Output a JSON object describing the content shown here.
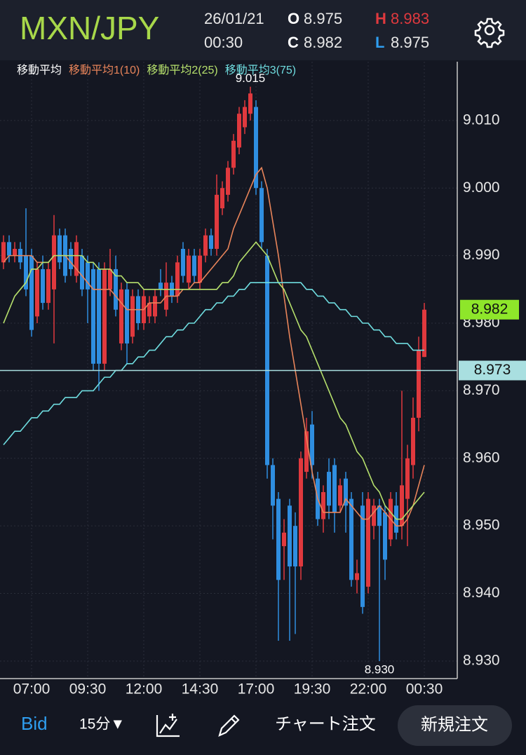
{
  "header": {
    "symbol": "MXN/JPY",
    "date": "26/01/21",
    "time": "00:30",
    "open_label": "O",
    "open": "8.975",
    "close_label": "C",
    "close": "8.982",
    "high_label": "H",
    "high": "8.983",
    "low_label": "L",
    "low": "8.975"
  },
  "chart_data": {
    "type": "candlestick",
    "legend_title": "移動平均",
    "categories": [
      null,
      null,
      null,
      null,
      null,
      "07:00",
      null,
      null,
      null,
      null,
      null,
      null,
      null,
      null,
      null,
      "09:30",
      null,
      null,
      null,
      null,
      null,
      null,
      null,
      null,
      null,
      "12:00",
      null,
      null,
      null,
      null,
      null,
      null,
      null,
      null,
      null,
      "14:30",
      null,
      null,
      null,
      null,
      null,
      null,
      null,
      null,
      null,
      "17:00",
      null,
      null,
      null,
      null,
      null,
      null,
      null,
      null,
      null,
      "19:30",
      null,
      null,
      null,
      null,
      null,
      null,
      null,
      null,
      null,
      "22:00",
      null,
      null,
      null,
      null,
      null,
      null,
      null,
      null,
      null,
      "00:30"
    ],
    "open": [
      8.989,
      8.992,
      8.99,
      8.991,
      8.99,
      8.99,
      8.981,
      8.988,
      8.983,
      8.985,
      8.993,
      8.993,
      8.991,
      8.987,
      8.99,
      8.989,
      8.988,
      8.988,
      8.974,
      8.985,
      8.988,
      8.977,
      8.985,
      8.978,
      8.984,
      8.98,
      8.981,
      8.981,
      8.986,
      8.982,
      8.986,
      8.984,
      8.991,
      8.986,
      8.99,
      8.986,
      8.99,
      8.993,
      8.991,
      8.997,
      8.999,
      9.003,
      9.006,
      9.009,
      9.011,
      9.012,
      9.0,
      8.99,
      8.959,
      8.954,
      8.947,
      8.953,
      8.95,
      8.944,
      8.958,
      8.965,
      8.957,
      8.951,
      8.958,
      8.959,
      8.953,
      8.957,
      8.954,
      8.942,
      8.953,
      8.941,
      8.95,
      8.953,
      8.952,
      8.948,
      8.953,
      8.95,
      8.954,
      8.959,
      8.966,
      8.975
    ],
    "high": [
      8.993,
      8.993,
      8.992,
      8.992,
      8.997,
      8.991,
      8.989,
      8.99,
      8.989,
      8.996,
      8.994,
      8.994,
      8.992,
      8.993,
      8.991,
      8.99,
      8.989,
      8.989,
      8.989,
      8.991,
      8.99,
      8.986,
      8.986,
      8.985,
      8.985,
      8.985,
      8.984,
      8.985,
      8.988,
      8.989,
      8.987,
      8.99,
      8.992,
      8.991,
      8.991,
      8.991,
      8.994,
      8.994,
      9.002,
      9.001,
      9.004,
      9.008,
      9.012,
      9.013,
      9.015,
      9.013,
      9.001,
      8.991,
      8.96,
      8.955,
      8.951,
      8.954,
      8.952,
      8.961,
      8.966,
      8.967,
      8.958,
      8.956,
      8.96,
      8.96,
      8.957,
      8.958,
      8.955,
      8.945,
      8.955,
      8.955,
      8.954,
      8.954,
      8.953,
      8.955,
      8.955,
      8.97,
      8.962,
      8.969,
      8.978,
      8.983
    ],
    "low": [
      8.988,
      8.989,
      8.989,
      8.988,
      8.984,
      8.978,
      8.98,
      8.982,
      8.982,
      8.977,
      8.988,
      8.986,
      8.987,
      8.986,
      8.984,
      8.98,
      8.973,
      8.97,
      8.973,
      8.984,
      8.981,
      8.976,
      8.974,
      8.977,
      8.979,
      8.979,
      8.98,
      8.98,
      8.984,
      8.981,
      8.983,
      8.983,
      8.986,
      8.985,
      8.986,
      8.985,
      8.989,
      8.99,
      8.99,
      8.996,
      8.998,
      9.002,
      9.005,
      9.008,
      9.01,
      8.999,
      8.991,
      8.957,
      8.948,
      8.933,
      8.942,
      8.933,
      8.934,
      8.942,
      8.957,
      8.957,
      8.95,
      8.949,
      8.951,
      8.949,
      8.952,
      8.949,
      8.941,
      8.94,
      8.937,
      8.94,
      8.948,
      8.93,
      8.942,
      8.947,
      8.948,
      8.948,
      8.947,
      8.957,
      8.964,
      8.975
    ],
    "close": [
      8.992,
      8.99,
      8.991,
      8.989,
      8.985,
      8.979,
      8.988,
      8.983,
      8.988,
      8.993,
      8.989,
      8.987,
      8.988,
      8.992,
      8.985,
      8.985,
      8.974,
      8.974,
      8.988,
      8.988,
      8.982,
      8.985,
      8.977,
      8.984,
      8.98,
      8.984,
      8.983,
      8.984,
      8.985,
      8.986,
      8.984,
      8.989,
      8.987,
      8.99,
      8.987,
      8.99,
      8.993,
      8.991,
      8.999,
      9.0,
      9.003,
      9.007,
      9.011,
      9.012,
      9.014,
      9.0,
      8.992,
      8.959,
      8.953,
      8.942,
      8.949,
      8.944,
      8.944,
      8.96,
      8.964,
      8.959,
      8.951,
      8.955,
      8.953,
      8.952,
      8.956,
      8.953,
      8.942,
      8.943,
      8.938,
      8.954,
      8.953,
      8.95,
      8.945,
      8.954,
      8.949,
      8.956,
      8.96,
      8.966,
      8.976,
      8.982
    ],
    "up_color": "#e0393e",
    "down_color": "#2f8ee0",
    "series": [
      {
        "name": "移動平均1(10)",
        "color": "#e8845a",
        "values": [
          8.989,
          8.99,
          8.99,
          8.99,
          8.99,
          8.99,
          8.989,
          8.989,
          8.989,
          8.99,
          8.99,
          8.99,
          8.989,
          8.988,
          8.987,
          8.986,
          8.985,
          8.985,
          8.985,
          8.985,
          8.984,
          8.983,
          8.982,
          8.982,
          8.982,
          8.982,
          8.983,
          8.983,
          8.983,
          8.984,
          8.984,
          8.984,
          8.985,
          8.985,
          8.986,
          8.986,
          8.987,
          8.988,
          8.989,
          8.99,
          8.991,
          8.994,
          8.996,
          8.998,
          9.0,
          9.002,
          9.003,
          9.0,
          8.995,
          8.99,
          8.984,
          8.978,
          8.973,
          8.968,
          8.963,
          8.958,
          8.954,
          8.952,
          8.952,
          8.952,
          8.952,
          8.954,
          8.953,
          8.952,
          8.951,
          8.951,
          8.952,
          8.953,
          8.952,
          8.951,
          8.95,
          8.95,
          8.951,
          8.953,
          8.956,
          8.959
        ]
      },
      {
        "name": "移動平均2(25)",
        "color": "#b6e06c",
        "values": [
          8.98,
          8.982,
          8.984,
          8.985,
          8.986,
          8.988,
          8.988,
          8.989,
          8.989,
          8.99,
          8.99,
          8.99,
          8.99,
          8.99,
          8.99,
          8.989,
          8.989,
          8.988,
          8.988,
          8.988,
          8.987,
          8.987,
          8.986,
          8.986,
          8.986,
          8.985,
          8.985,
          8.985,
          8.985,
          8.985,
          8.985,
          8.985,
          8.985,
          8.985,
          8.985,
          8.985,
          8.985,
          8.985,
          8.985,
          8.986,
          8.986,
          8.987,
          8.989,
          8.99,
          8.991,
          8.992,
          8.991,
          8.99,
          8.988,
          8.986,
          8.985,
          8.983,
          8.981,
          8.979,
          8.978,
          8.976,
          8.974,
          8.972,
          8.97,
          8.968,
          8.966,
          8.965,
          8.963,
          8.961,
          8.96,
          8.958,
          8.956,
          8.955,
          8.953,
          8.952,
          8.951,
          8.951,
          8.952,
          8.953,
          8.954,
          8.955
        ]
      },
      {
        "name": "移動平均3(75)",
        "color": "#6fdde0",
        "values": [
          8.962,
          8.963,
          8.964,
          8.964,
          8.965,
          8.966,
          8.966,
          8.967,
          8.967,
          8.968,
          8.968,
          8.969,
          8.969,
          8.969,
          8.97,
          8.97,
          8.97,
          8.971,
          8.972,
          8.972,
          8.973,
          8.973,
          8.974,
          8.974,
          8.975,
          8.975,
          8.976,
          8.976,
          8.977,
          8.978,
          8.978,
          8.979,
          8.979,
          8.98,
          8.98,
          8.981,
          8.982,
          8.982,
          8.983,
          8.983,
          8.984,
          8.984,
          8.985,
          8.985,
          8.986,
          8.986,
          8.986,
          8.986,
          8.986,
          8.986,
          8.986,
          8.986,
          8.986,
          8.986,
          8.985,
          8.985,
          8.984,
          8.984,
          8.983,
          8.983,
          8.982,
          8.982,
          8.981,
          8.981,
          8.98,
          8.98,
          8.979,
          8.979,
          8.978,
          8.978,
          8.977,
          8.977,
          8.977,
          8.976,
          8.976,
          8.976
        ]
      }
    ],
    "ylim": [
      8.9274,
      9.0187
    ],
    "yticks": [
      {
        "value": 8.93,
        "label": "8.930"
      },
      {
        "value": 8.94,
        "label": "8.940"
      },
      {
        "value": 8.95,
        "label": "8.950"
      },
      {
        "value": 8.96,
        "label": "8.960"
      },
      {
        "value": 8.97,
        "label": "8.970"
      },
      {
        "value": 8.98,
        "label": "8.980"
      },
      {
        "value": 8.99,
        "label": "8.990"
      },
      {
        "value": 9.0,
        "label": "9.000"
      },
      {
        "value": 9.01,
        "label": "9.010"
      }
    ],
    "grid": true,
    "high_annotation": {
      "value": 9.015,
      "label": "9.015"
    },
    "low_annotation": {
      "value": 8.93,
      "label": "8.930"
    },
    "last_price": {
      "value": 8.982,
      "label": "8.982",
      "color": "#8ee62a"
    },
    "bid_line": {
      "value": 8.973,
      "label": "8.973",
      "color": "#a9dfe0"
    }
  },
  "toolbar": {
    "price_type": "Bid",
    "interval": "15分▼",
    "chart_order": "チャート注文",
    "new_order": "新規注文"
  }
}
